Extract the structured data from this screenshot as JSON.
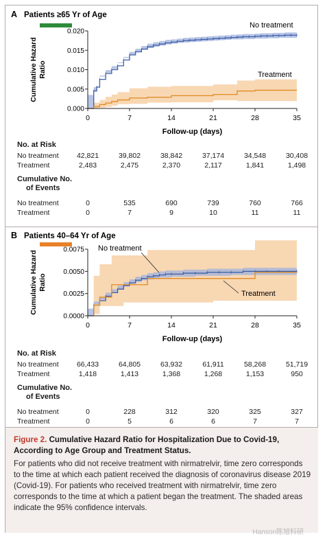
{
  "chart_data": [
    {
      "type": "line",
      "panel_letter": "A",
      "title": "Patients ≥65 Yr of Age",
      "title_bar_color": "#2e8b3a",
      "ylabel": "Cumulative Hazard Ratio",
      "xlabel": "Follow-up (days)",
      "ylim": [
        0,
        0.02
      ],
      "yticks": [
        "0.000",
        "0.005",
        "0.010",
        "0.015",
        "0.020"
      ],
      "ytick_values": [
        0,
        0.005,
        0.01,
        0.015,
        0.02
      ],
      "xlim": [
        0,
        35
      ],
      "xticks": [
        0,
        7,
        14,
        21,
        28,
        35
      ],
      "grid": false,
      "series": [
        {
          "name": "No treatment",
          "color": "#3d5ea6",
          "band_color": "#9fb2dd",
          "x": [
            0,
            1,
            1.5,
            2,
            3,
            4,
            5,
            6,
            7,
            8,
            9,
            10,
            11,
            12,
            13,
            14,
            15,
            16,
            17,
            18,
            19,
            20,
            21,
            22,
            23,
            24,
            25,
            26,
            27,
            28,
            29,
            30,
            31,
            32,
            33,
            34,
            35
          ],
          "y": [
            0,
            0.0045,
            0.0055,
            0.0075,
            0.009,
            0.01,
            0.011,
            0.0125,
            0.0138,
            0.0146,
            0.0153,
            0.0159,
            0.0163,
            0.0166,
            0.0169,
            0.0171,
            0.0173,
            0.0175,
            0.0176,
            0.0177,
            0.0178,
            0.0179,
            0.018,
            0.0181,
            0.0182,
            0.0183,
            0.0184,
            0.0185,
            0.0185,
            0.0186,
            0.0187,
            0.0187,
            0.0188,
            0.0188,
            0.0189,
            0.0189,
            0.0189
          ],
          "lower": [
            0,
            0.0035,
            0.0045,
            0.0066,
            0.0082,
            0.0092,
            0.0102,
            0.0117,
            0.013,
            0.0139,
            0.0146,
            0.0152,
            0.0156,
            0.0159,
            0.0162,
            0.0165,
            0.0167,
            0.0169,
            0.017,
            0.0171,
            0.0172,
            0.0173,
            0.0174,
            0.0175,
            0.0176,
            0.0177,
            0.0178,
            0.0178,
            0.0179,
            0.0179,
            0.018,
            0.018,
            0.0181,
            0.0181,
            0.0182,
            0.0182,
            0.0182
          ],
          "upper": [
            0,
            0.0055,
            0.0066,
            0.0085,
            0.0099,
            0.0109,
            0.0119,
            0.0133,
            0.0146,
            0.0154,
            0.0161,
            0.0167,
            0.0171,
            0.0174,
            0.0177,
            0.0178,
            0.018,
            0.0182,
            0.0183,
            0.0184,
            0.0185,
            0.0186,
            0.0187,
            0.0188,
            0.0189,
            0.019,
            0.0191,
            0.0192,
            0.0192,
            0.0193,
            0.0194,
            0.0194,
            0.0195,
            0.0195,
            0.0196,
            0.0196,
            0.0196
          ]
        },
        {
          "name": "Treatment",
          "color": "#e08a22",
          "band_color": "#f6c99a",
          "x": [
            0,
            1,
            2,
            3,
            4,
            5,
            7,
            10,
            14,
            21,
            25,
            28,
            35
          ],
          "y": [
            0,
            0.0005,
            0.001,
            0.0014,
            0.0018,
            0.0022,
            0.0027,
            0.0029,
            0.0033,
            0.0036,
            0.0045,
            0.0047,
            0.0047
          ],
          "lower": [
            0,
            0,
            0,
            0.0002,
            0.0004,
            0.0007,
            0.0011,
            0.0012,
            0.0015,
            0.0016,
            0.0021,
            0.0019,
            0.0019
          ],
          "upper": [
            0,
            0.0015,
            0.0022,
            0.003,
            0.0036,
            0.0042,
            0.0052,
            0.0056,
            0.0058,
            0.0062,
            0.0072,
            0.0075,
            0.0075
          ]
        }
      ],
      "annotations": [
        "No treatment",
        "Treatment"
      ]
    },
    {
      "type": "line",
      "panel_letter": "B",
      "title": "Patients 40–64 Yr of Age",
      "title_bar_color": "#e8822a",
      "ylabel": "Cumulative Hazard Ratio",
      "xlabel": "Follow-up (days)",
      "ylim": [
        0,
        0.0075
      ],
      "yticks": [
        "0.0000",
        "0.0025",
        "0.0050",
        "0.0075"
      ],
      "ytick_values": [
        0,
        0.0025,
        0.005,
        0.0075
      ],
      "xlim": [
        0,
        35
      ],
      "xticks": [
        0,
        7,
        14,
        21,
        28,
        35
      ],
      "grid": false,
      "series": [
        {
          "name": "No treatment",
          "color": "#3d5ea6",
          "band_color": "#9fb2dd",
          "x": [
            0,
            1,
            2,
            3,
            4,
            5,
            6,
            7,
            8,
            9,
            10,
            11,
            12,
            13,
            14,
            16,
            18,
            20,
            22,
            24,
            26,
            28,
            30,
            32,
            35
          ],
          "y": [
            0,
            0.0012,
            0.0017,
            0.0022,
            0.0026,
            0.003,
            0.0034,
            0.0037,
            0.004,
            0.0042,
            0.0044,
            0.0045,
            0.0046,
            0.0047,
            0.0047,
            0.0048,
            0.0048,
            0.0049,
            0.0049,
            0.0049,
            0.005,
            0.005,
            0.005,
            0.005,
            0.005
          ],
          "lower": [
            0,
            0.0008,
            0.0013,
            0.0018,
            0.0022,
            0.0026,
            0.003,
            0.0033,
            0.0036,
            0.0038,
            0.004,
            0.0041,
            0.0042,
            0.0043,
            0.0043,
            0.0044,
            0.0044,
            0.0045,
            0.0045,
            0.0045,
            0.0046,
            0.0046,
            0.0046,
            0.0046,
            0.0046
          ],
          "upper": [
            0,
            0.0016,
            0.0021,
            0.0026,
            0.003,
            0.0034,
            0.0038,
            0.0041,
            0.0044,
            0.0046,
            0.0048,
            0.0049,
            0.005,
            0.0051,
            0.0051,
            0.0052,
            0.0052,
            0.0053,
            0.0053,
            0.0053,
            0.0054,
            0.0054,
            0.0054,
            0.0054,
            0.0054
          ]
        },
        {
          "name": "Treatment",
          "color": "#e08a22",
          "band_color": "#f6c99a",
          "x": [
            0,
            1,
            2,
            4,
            6,
            10,
            14,
            21,
            28,
            35
          ],
          "y": [
            0,
            0.0012,
            0.0021,
            0.0035,
            0.0035,
            0.0042,
            0.0042,
            0.0042,
            0.0049,
            0.0049
          ],
          "lower": [
            0,
            0,
            0.0002,
            0.0011,
            0.0011,
            0.0015,
            0.0015,
            0.0015,
            0.0017,
            0.0017
          ],
          "upper": [
            0,
            0.0045,
            0.0058,
            0.0068,
            0.0068,
            0.0074,
            0.0074,
            0.0074,
            0.0085,
            0.0085
          ]
        }
      ],
      "annotations": [
        "No treatment",
        "Treatment"
      ]
    }
  ],
  "risk_tables": [
    {
      "at_risk_header": "No. at Risk",
      "events_header_line1": "Cumulative No.",
      "events_header_line2": "of Events",
      "rows_at_risk": [
        {
          "label": "No treatment",
          "values": [
            "42,821",
            "39,802",
            "38,842",
            "37,174",
            "34,548",
            "30,408"
          ]
        },
        {
          "label": "Treatment",
          "values": [
            "2,483",
            "2,475",
            "2,370",
            "2,117",
            "1,841",
            "1,498"
          ]
        }
      ],
      "rows_events": [
        {
          "label": "No treatment",
          "values": [
            "0",
            "535",
            "690",
            "739",
            "760",
            "766"
          ]
        },
        {
          "label": "Treatment",
          "values": [
            "0",
            "7",
            "9",
            "10",
            "11",
            "11"
          ]
        }
      ]
    },
    {
      "at_risk_header": "No. at Risk",
      "events_header_line1": "Cumulative No.",
      "events_header_line2": "of Events",
      "rows_at_risk": [
        {
          "label": "No treatment",
          "values": [
            "66,433",
            "64,805",
            "63,932",
            "61,911",
            "58,268",
            "51,719"
          ]
        },
        {
          "label": "Treatment",
          "values": [
            "1,418",
            "1,413",
            "1,368",
            "1,268",
            "1,153",
            "950"
          ]
        }
      ],
      "rows_events": [
        {
          "label": "No treatment",
          "values": [
            "0",
            "228",
            "312",
            "320",
            "325",
            "327"
          ]
        },
        {
          "label": "Treatment",
          "values": [
            "0",
            "5",
            "6",
            "6",
            "7",
            "7"
          ]
        }
      ]
    }
  ],
  "caption": {
    "figure_label": "Figure 2.",
    "title": "Cumulative Hazard Ratio for Hospitalization Due to Covid-19, According to Age Group and Treatment Status.",
    "body": "For patients who did not receive treatment with nirmatrelvir, time zero corresponds to the time at which each patient received the diagnosis of coronavirus disease 2019 (Covid-19). For patients who received treatment with nirmatrelvir, time zero corresponds to the time at which a patient began the treatment. The shaded areas indicate the 95% confidence intervals."
  },
  "watermark": "Hanson陈旭科研",
  "colors": {
    "frame": "#b3acab",
    "caption_bg": "#f4eeec",
    "figure_label": "#c0392b"
  }
}
